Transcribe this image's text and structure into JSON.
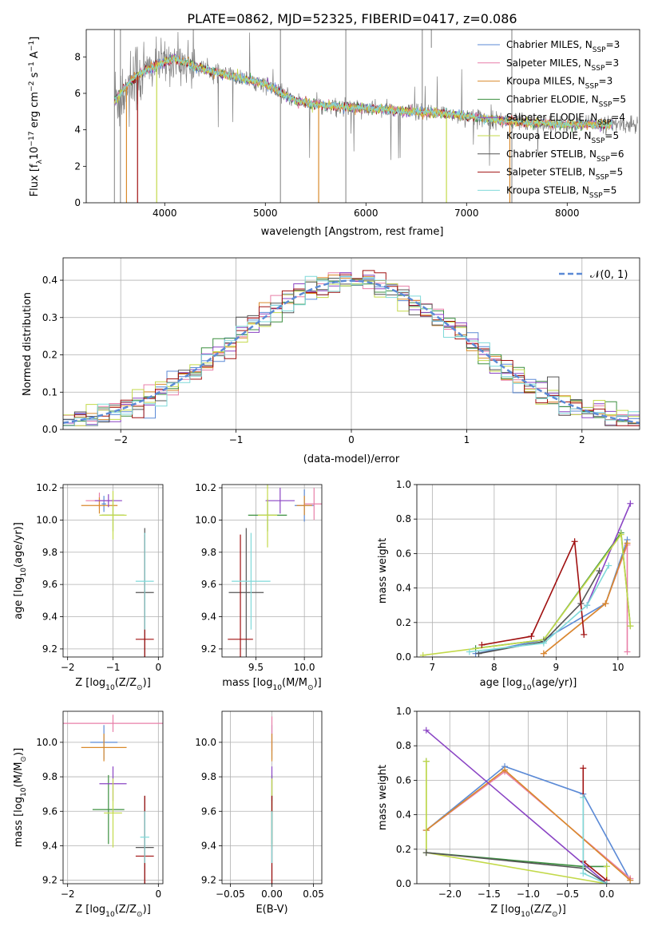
{
  "colors": [
    "#5b8ad6",
    "#e87fa8",
    "#d98a2b",
    "#3b8f3f",
    "#8a44c4",
    "#c3d94a",
    "#555555",
    "#a01010",
    "#7fd9d9"
  ],
  "chart_data": [
    {
      "id": "spectrum",
      "type": "line",
      "title": "PLATE=0862, MJD=52325, FIBERID=0417, z=0.086",
      "xlabel": "wavelength [Angstrom, rest frame]",
      "ylabel_parts": [
        "Flux [f",
        "λ",
        "10",
        "−17",
        " erg cm",
        "−2",
        " s",
        "−1",
        " A",
        "−1",
        "]"
      ],
      "xlim": [
        3220,
        8720
      ],
      "ylim": [
        0,
        9.5
      ],
      "xticks": [
        4000,
        5000,
        6000,
        7000,
        8000
      ],
      "yticks": [
        0,
        2,
        4,
        6,
        8
      ],
      "continuum": {
        "x": [
          3500,
          3700,
          3900,
          4100,
          4400,
          4700,
          5000,
          5300,
          5600,
          6000,
          6400,
          6800,
          7200,
          7600,
          8000,
          8400
        ],
        "y": [
          5.6,
          6.9,
          7.5,
          7.9,
          7.3,
          6.9,
          6.5,
          5.6,
          5.3,
          5.2,
          5.0,
          4.9,
          4.6,
          4.4,
          4.3,
          4.3
        ]
      },
      "legend": [
        {
          "name": "Chabrier MILES, N",
          "sub": "SSP",
          "tail": "=3"
        },
        {
          "name": "Salpeter MILES, N",
          "sub": "SSP",
          "tail": "=3"
        },
        {
          "name": "Kroupa MILES, N",
          "sub": "SSP",
          "tail": "=3"
        },
        {
          "name": "Chabrier ELODIE, N",
          "sub": "SSP",
          "tail": "=5"
        },
        {
          "name": "Salpeter ELODIE, N",
          "sub": "SSP",
          "tail": "=4"
        },
        {
          "name": "Kroupa ELODIE, N",
          "sub": "SSP",
          "tail": "=5"
        },
        {
          "name": "Chabrier STELIB, N",
          "sub": "SSP",
          "tail": "=6"
        },
        {
          "name": "Salpeter STELIB, N",
          "sub": "SSP",
          "tail": "=5"
        },
        {
          "name": "Kroupa STELIB, N",
          "sub": "SSP",
          "tail": "=5"
        }
      ]
    },
    {
      "id": "histogram",
      "type": "bar",
      "xlabel": "(data-model)/error",
      "ylabel": "Normed distribution",
      "xlim": [
        -2.5,
        2.5
      ],
      "ylim": [
        0,
        0.46
      ],
      "xticks": [
        -2,
        -1,
        0,
        1,
        2
      ],
      "yticks": [
        0.0,
        0.1,
        0.2,
        0.3,
        0.4
      ],
      "legend": "𝒩(0, 1)",
      "bin_width": 0.1,
      "bin_start": -2.5
    },
    {
      "id": "z-age",
      "type": "scatter",
      "xlabel_parts": [
        "Z [log",
        "10",
        "(Z/Z",
        "⊙",
        ")]"
      ],
      "ylabel_parts": [
        "age  [log",
        "10",
        "(age/yr)]"
      ],
      "xlim": [
        -2.1,
        0.1
      ],
      "ylim": [
        9.15,
        10.22
      ],
      "xticks": [
        -2,
        -1,
        0
      ],
      "yticks": [
        9.2,
        9.4,
        9.6,
        9.8,
        10.0,
        10.2
      ],
      "points": [
        {
          "x": -1.2,
          "y": 10.1,
          "xerr": 0.05,
          "yerr": 0.05,
          "s": 0
        },
        {
          "x": -1.3,
          "y": 10.12,
          "xerr": 0.3,
          "yerr": 0.05,
          "s": 1
        },
        {
          "x": -1.3,
          "y": 10.09,
          "xerr": 0.4,
          "yerr": 0.05,
          "s": 2
        },
        {
          "x": -1.0,
          "y": 10.03,
          "xerr": 0.25,
          "yerr": 0.1,
          "s": 3
        },
        {
          "x": -1.1,
          "y": 10.12,
          "xerr": 0.3,
          "yerr": 0.04,
          "s": 4
        },
        {
          "x": -1.0,
          "y": 10.03,
          "xerr": 0.3,
          "yerr": 0.15,
          "s": 5
        },
        {
          "x": -0.3,
          "y": 9.55,
          "xerr": 0.2,
          "yerr": 0.4,
          "s": 6
        },
        {
          "x": -0.3,
          "y": 9.26,
          "xerr": 0.2,
          "yerr": 0.65,
          "s": 7
        },
        {
          "x": -0.3,
          "y": 9.62,
          "xerr": 0.2,
          "yerr": 0.3,
          "s": 8
        }
      ]
    },
    {
      "id": "mass-age",
      "type": "scatter",
      "xlabel_parts": [
        "mass [log",
        "10",
        "(M/M",
        "⊙",
        ")]"
      ],
      "ylabel_parts": [],
      "xlim": [
        9.15,
        10.18
      ],
      "ylim": [
        9.15,
        10.22
      ],
      "xticks": [
        9.5,
        10.0
      ],
      "yticks": [
        9.2,
        9.4,
        9.6,
        9.8,
        10.0,
        10.2
      ],
      "points": [
        {
          "x": 10.0,
          "y": 10.09,
          "xerr": 0.1,
          "yerr": 0.1,
          "s": 0
        },
        {
          "x": 10.1,
          "y": 10.1,
          "xerr": 0.1,
          "yerr": 0.1,
          "s": 1
        },
        {
          "x": 10.0,
          "y": 10.09,
          "xerr": 0.08,
          "yerr": 0.06,
          "s": 2
        },
        {
          "x": 9.62,
          "y": 10.03,
          "xerr": 0.2,
          "yerr": 0.1,
          "s": 3
        },
        {
          "x": 9.75,
          "y": 10.12,
          "xerr": 0.15,
          "yerr": 0.08,
          "s": 4
        },
        {
          "x": 9.62,
          "y": 10.03,
          "xerr": 0.1,
          "yerr": 0.2,
          "s": 5
        },
        {
          "x": 9.4,
          "y": 9.55,
          "xerr": 0.18,
          "yerr": 0.4,
          "s": 6
        },
        {
          "x": 9.34,
          "y": 9.26,
          "xerr": 0.13,
          "yerr": 0.65,
          "s": 7
        },
        {
          "x": 9.45,
          "y": 9.62,
          "xerr": 0.2,
          "yerr": 0.3,
          "s": 8
        }
      ]
    },
    {
      "id": "age-weight",
      "type": "line",
      "xlabel_parts": [
        "age  [log",
        "10",
        "(age/yr)]"
      ],
      "ylabel": "mass weight",
      "xlim": [
        6.75,
        10.35
      ],
      "ylim": [
        0,
        1.0
      ],
      "xticks": [
        7,
        8,
        9,
        10
      ],
      "yticks": [
        0.0,
        0.2,
        0.4,
        0.6,
        0.8,
        1.0
      ],
      "series": [
        {
          "s": 0,
          "x": [
            7.7,
            8.8,
            9.8,
            10.15
          ],
          "y": [
            0.02,
            0.1,
            0.31,
            0.68
          ]
        },
        {
          "s": 1,
          "x": [
            8.8,
            9.8,
            10.15,
            10.15
          ],
          "y": [
            0.02,
            0.31,
            0.65,
            0.03
          ]
        },
        {
          "s": 2,
          "x": [
            8.8,
            9.8,
            10.15
          ],
          "y": [
            0.02,
            0.31,
            0.66
          ]
        },
        {
          "s": 3,
          "x": [
            7.7,
            8.8,
            10.05,
            10.2
          ],
          "y": [
            0.05,
            0.1,
            0.72,
            0.18
          ]
        },
        {
          "s": 4,
          "x": [
            9.5,
            10.2
          ],
          "y": [
            0.3,
            0.89
          ]
        },
        {
          "s": 5,
          "x": [
            6.85,
            8.8,
            10.05,
            10.2
          ],
          "y": [
            0.01,
            0.1,
            0.71,
            0.18
          ]
        },
        {
          "s": 6,
          "x": [
            7.75,
            8.8,
            9.4,
            9.7
          ],
          "y": [
            0.02,
            0.09,
            0.31,
            0.5
          ]
        },
        {
          "s": 7,
          "x": [
            7.8,
            8.6,
            9.3,
            9.45
          ],
          "y": [
            0.07,
            0.12,
            0.67,
            0.13
          ]
        },
        {
          "s": 8,
          "x": [
            7.6,
            8.8,
            9.5,
            9.85
          ],
          "y": [
            0.03,
            0.08,
            0.3,
            0.53
          ]
        }
      ]
    },
    {
      "id": "z-mass",
      "type": "scatter",
      "xlabel_parts": [
        "Z [log",
        "10",
        "(Z/Z",
        "⊙",
        ")]"
      ],
      "ylabel_parts": [
        "mass [log",
        "10",
        "(M/M",
        "⊙",
        ")]"
      ],
      "xlim": [
        -2.1,
        0.1
      ],
      "ylim": [
        9.18,
        10.18
      ],
      "xticks": [
        -2,
        0
      ],
      "yticks": [
        9.2,
        9.4,
        9.6,
        9.8,
        10.0
      ],
      "points": [
        {
          "x": -1.2,
          "y": 10.0,
          "xerr": 0.3,
          "yerr": 0.1,
          "s": 0
        },
        {
          "x": -1.0,
          "y": 10.11,
          "xerr": 1.1,
          "yerr": 0.05,
          "s": 1
        },
        {
          "x": -1.2,
          "y": 9.97,
          "xerr": 0.5,
          "yerr": 0.08,
          "s": 2
        },
        {
          "x": -1.1,
          "y": 9.61,
          "xerr": 0.35,
          "yerr": 0.2,
          "s": 3
        },
        {
          "x": -1.0,
          "y": 9.76,
          "xerr": 0.3,
          "yerr": 0.1,
          "s": 4
        },
        {
          "x": -1.0,
          "y": 9.59,
          "xerr": 0.2,
          "yerr": 0.2,
          "s": 5
        },
        {
          "x": -0.3,
          "y": 9.39,
          "xerr": 0.2,
          "yerr": 0.3,
          "s": 6
        },
        {
          "x": -0.3,
          "y": 9.34,
          "xerr": 0.2,
          "yerr": 0.35,
          "s": 7
        },
        {
          "x": -0.3,
          "y": 9.45,
          "xerr": 0.1,
          "yerr": 0.15,
          "s": 8
        }
      ]
    },
    {
      "id": "ebv-mass",
      "type": "scatter",
      "xlabel": "E(B-V)",
      "xlim": [
        -0.06,
        0.06
      ],
      "ylim": [
        9.18,
        10.18
      ],
      "xticks": [
        -0.05,
        0.0,
        0.05
      ],
      "xtick_labels": [
        "−0.05",
        "0.00",
        "0.05"
      ],
      "yticks": [
        9.2,
        9.4,
        9.6,
        9.8,
        10.0
      ],
      "points": [
        {
          "x": 0,
          "y": 10.0,
          "yerr": 0.1,
          "s": 0
        },
        {
          "x": 0,
          "y": 10.05,
          "yerr": 0.1,
          "s": 1
        },
        {
          "x": 0,
          "y": 9.97,
          "yerr": 0.08,
          "s": 2
        },
        {
          "x": 0,
          "y": 9.61,
          "yerr": 0.2,
          "s": 3
        },
        {
          "x": 0,
          "y": 9.76,
          "yerr": 0.1,
          "s": 4
        },
        {
          "x": 0,
          "y": 9.59,
          "yerr": 0.2,
          "s": 5
        },
        {
          "x": 0,
          "y": 9.39,
          "yerr": 0.3,
          "s": 6
        },
        {
          "x": 0,
          "y": 9.34,
          "yerr": 0.35,
          "s": 7
        },
        {
          "x": 0,
          "y": 9.45,
          "yerr": 0.15,
          "s": 8
        }
      ]
    },
    {
      "id": "z-weight",
      "type": "line",
      "xlabel_parts": [
        "Z [log",
        "10",
        "(Z/Z",
        "⊙",
        ")]"
      ],
      "ylabel": "mass weight",
      "xlim": [
        -2.42,
        0.42
      ],
      "ylim": [
        0,
        1.0
      ],
      "xticks": [
        -2.0,
        -1.5,
        -1.0,
        -0.5,
        0.0
      ],
      "xtick_labels": [
        "−2.0",
        "−1.5",
        "−1.0",
        "−0.5",
        "0.0"
      ],
      "yticks": [
        0.0,
        0.2,
        0.4,
        0.6,
        0.8,
        1.0
      ],
      "series": [
        {
          "s": 0,
          "x": [
            -2.3,
            -1.3,
            -0.3,
            0.3
          ],
          "y": [
            0.31,
            0.68,
            0.52,
            0.02
          ]
        },
        {
          "s": 1,
          "x": [
            -2.3,
            -1.3,
            0.3,
            0.3
          ],
          "y": [
            0.31,
            0.65,
            0.03,
            0.03
          ]
        },
        {
          "s": 2,
          "x": [
            -2.3,
            -1.3,
            0.3
          ],
          "y": [
            0.31,
            0.66,
            0.02
          ]
        },
        {
          "s": 3,
          "x": [
            -2.3,
            -2.3,
            -0.3,
            0.0
          ],
          "y": [
            0.71,
            0.18,
            0.1,
            0.1
          ]
        },
        {
          "s": 4,
          "x": [
            -2.3,
            0.0
          ],
          "y": [
            0.89,
            0.0
          ]
        },
        {
          "s": 5,
          "x": [
            -2.3,
            -2.3,
            0.0,
            0.0
          ],
          "y": [
            0.71,
            0.18,
            0.0,
            0.1
          ]
        },
        {
          "s": 6,
          "x": [
            -2.3,
            -0.3,
            0.0
          ],
          "y": [
            0.18,
            0.09,
            0.0
          ]
        },
        {
          "s": 7,
          "x": [
            -0.3,
            -0.3,
            0.0
          ],
          "y": [
            0.67,
            0.13,
            0.02
          ]
        },
        {
          "s": 8,
          "x": [
            -0.3,
            -0.3,
            0.0
          ],
          "y": [
            0.5,
            0.06,
            0.0
          ]
        }
      ]
    }
  ]
}
